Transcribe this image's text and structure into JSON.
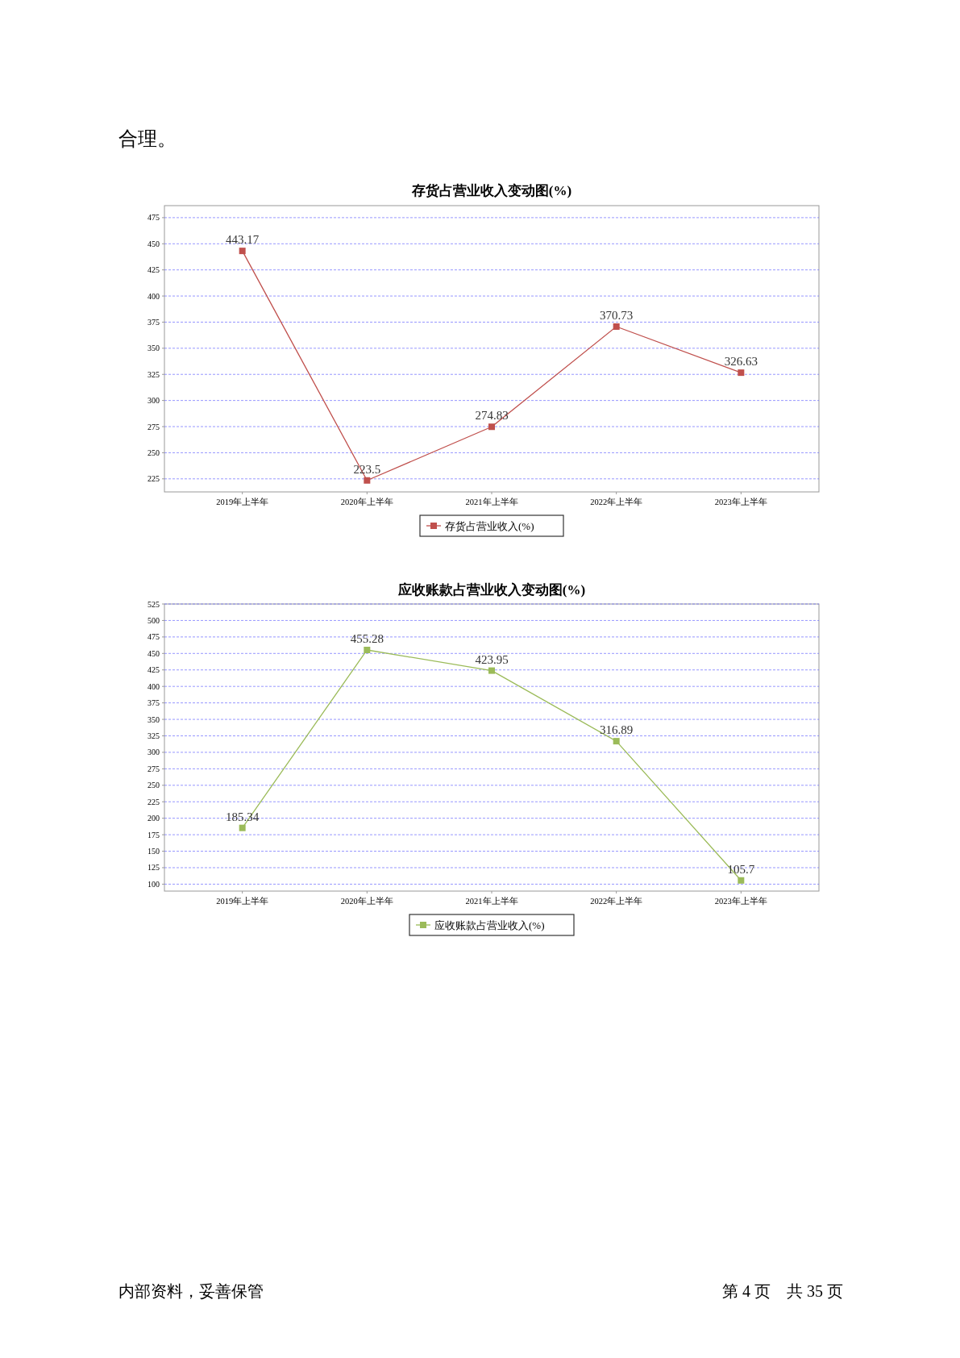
{
  "chart_data": [
    {
      "type": "line",
      "title": "存货占营业收入变动图(%)",
      "categories": [
        "2019年上半年",
        "2020年上半年",
        "2021年上半年",
        "2022年上半年",
        "2023年上半年"
      ],
      "series": [
        {
          "name": "存货占营业收入(%)",
          "color": "#c0504d",
          "values": [
            443.17,
            223.5,
            274.83,
            370.73,
            326.63
          ]
        }
      ],
      "ylim": [
        212.5,
        486.5
      ],
      "yticks": [
        225,
        250,
        275,
        300,
        325,
        350,
        375,
        400,
        425,
        450,
        475
      ],
      "grid": "y",
      "legend": "bottom",
      "marker": "square",
      "line_style": "solid",
      "data_labels": true,
      "annotations": [
        "合理。"
      ]
    },
    {
      "type": "line",
      "title": "应收账款占营业收入变动图(%)",
      "categories": [
        "2019年上半年",
        "2020年上半年",
        "2021年上半年",
        "2022年上半年",
        "2023年上半年"
      ],
      "series": [
        {
          "name": "应收账款占营业收入(%)",
          "color": "#9bbb59",
          "values": [
            185.34,
            455.28,
            423.95,
            316.89,
            105.7
          ]
        }
      ],
      "ylim": [
        89.5,
        525
      ],
      "yticks": [
        100,
        125,
        150,
        175,
        200,
        225,
        250,
        275,
        300,
        325,
        350,
        375,
        400,
        425,
        450,
        475,
        500,
        525
      ],
      "grid": "y",
      "legend": "bottom",
      "marker": "square",
      "line_style": "solid",
      "data_labels": true,
      "annotations": [
        "内部资料，妥善保管",
        "第 4 页　共 35 页"
      ]
    }
  ]
}
